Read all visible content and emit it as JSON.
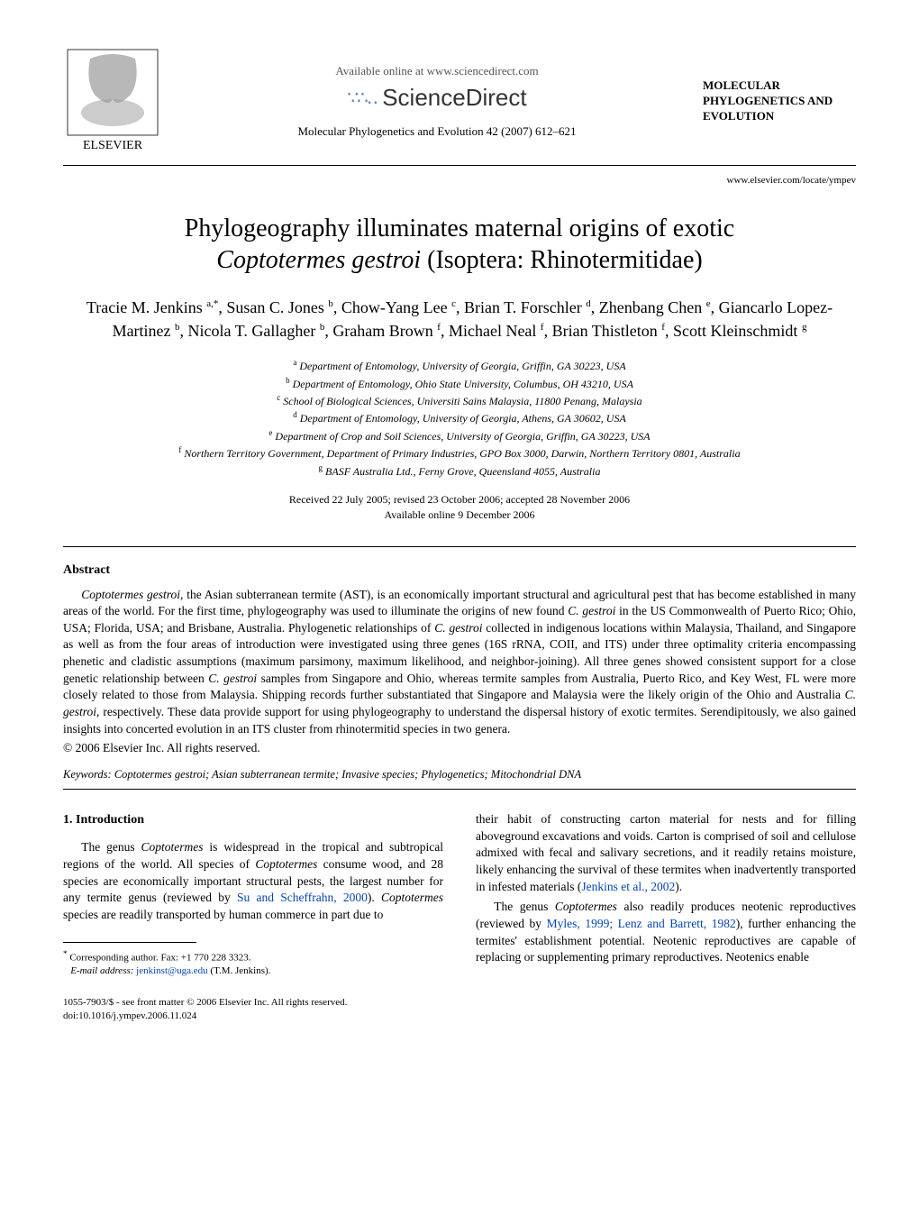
{
  "header": {
    "available_online": "Available online at www.sciencedirect.com",
    "sciencedirect_label": "ScienceDirect",
    "journal_citation": "Molecular Phylogenetics and Evolution 42 (2007) 612–621",
    "journal_title_lines": "MOLECULAR PHYLOGENETICS AND EVOLUTION",
    "site_link": "www.elsevier.com/locate/ympev",
    "elsevier_label": "ELSEVIER"
  },
  "title": {
    "line1": "Phylogeography illuminates maternal origins of exotic",
    "line2_pre": "",
    "line2_italic": "Coptotermes gestroi",
    "line2_post": " (Isoptera: Rhinotermitidae)"
  },
  "authors_html": "Tracie M. Jenkins <sup>a,*</sup>, Susan C. Jones <sup>b</sup>, Chow-Yang Lee <sup>c</sup>, Brian T. Forschler <sup>d</sup>, Zhenbang Chen <sup>e</sup>, Giancarlo Lopez-Martinez <sup>b</sup>, Nicola T. Gallagher <sup>b</sup>, Graham Brown <sup>f</sup>, Michael Neal <sup>f</sup>, Brian Thistleton <sup>f</sup>, Scott Kleinschmidt <sup>g</sup>",
  "affiliations": {
    "a": "Department of Entomology, University of Georgia, Griffin, GA 30223, USA",
    "b": "Department of Entomology, Ohio State University, Columbus, OH 43210, USA",
    "c": "School of Biological Sciences, Universiti Sains Malaysia, 11800 Penang, Malaysia",
    "d": "Department of Entomology, University of Georgia, Athens, GA 30602, USA",
    "e": "Department of Crop and Soil Sciences, University of Georgia, Griffin, GA 30223, USA",
    "f": "Northern Territory Government, Department of Primary Industries, GPO Box 3000, Darwin, Northern Territory 0801, Australia",
    "g": "BASF Australia Ltd., Ferny Grove, Queensland 4055, Australia"
  },
  "dates": {
    "received": "Received 22 July 2005; revised 23 October 2006; accepted 28 November 2006",
    "available": "Available online 9 December 2006"
  },
  "abstract": {
    "heading": "Abstract",
    "text": "Coptotermes gestroi, the Asian subterranean termite (AST), is an economically important structural and agricultural pest that has become established in many areas of the world. For the first time, phylogeography was used to illuminate the origins of new found C. gestroi in the US Commonwealth of Puerto Rico; Ohio, USA; Florida, USA; and Brisbane, Australia. Phylogenetic relationships of C. gestroi collected in indigenous locations within Malaysia, Thailand, and Singapore as well as from the four areas of introduction were investigated using three genes (16S rRNA, COII, and ITS) under three optimality criteria encompassing phenetic and cladistic assumptions (maximum parsimony, maximum likelihood, and neighbor-joining). All three genes showed consistent support for a close genetic relationship between C. gestroi samples from Singapore and Ohio, whereas termite samples from Australia, Puerto Rico, and Key West, FL were more closely related to those from Malaysia. Shipping records further substantiated that Singapore and Malaysia were the likely origin of the Ohio and Australia C. gestroi, respectively. These data provide support for using phylogeography to understand the dispersal history of exotic termites. Serendipitously, we also gained insights into concerted evolution in an ITS cluster from rhinotermitid species in two genera.",
    "copyright": "© 2006 Elsevier Inc. All rights reserved."
  },
  "keywords": {
    "label": "Keywords:",
    "text": " Coptotermes gestroi; Asian subterranean termite; Invasive species; Phylogenetics; Mitochondrial DNA"
  },
  "intro": {
    "heading": "1. Introduction",
    "left_p1_a": "The genus ",
    "left_p1_ital1": "Coptotermes",
    "left_p1_b": " is widespread in the tropical and subtropical regions of the world. All species of ",
    "left_p1_ital2": "Coptotermes",
    "left_p1_c": " consume wood, and 28 species are economically important structural pests, the largest number for any termite genus (reviewed by ",
    "left_p1_cite": "Su and Scheffrahn, 2000",
    "left_p1_d": "). ",
    "left_p1_ital3": "Coptotermes",
    "left_p1_e": " species are readily transported by human commerce in part due to",
    "right_p1_a": "their habit of constructing carton material for nests and for filling aboveground excavations and voids. Carton is comprised of soil and cellulose admixed with fecal and salivary secretions, and it readily retains moisture, likely enhancing the survival of these termites when inadvertently transported in infested materials (",
    "right_p1_cite": "Jenkins et al., 2002",
    "right_p1_b": ").",
    "right_p2_a": "The genus ",
    "right_p2_ital": "Coptotermes",
    "right_p2_b": " also readily produces neotenic reproductives (reviewed by ",
    "right_p2_cite": "Myles, 1999; Lenz and Barrett, 1982",
    "right_p2_c": "), further enhancing the termites' establishment potential. Neotenic reproductives are capable of replacing or supplementing primary reproductives. Neotenics enable"
  },
  "footnote": {
    "corr": "Corresponding author. Fax: +1 770 228 3323.",
    "email_label": "E-mail address:",
    "email": "jenkinst@uga.edu",
    "email_who": " (T.M. Jenkins)."
  },
  "bottom": {
    "front_matter": "1055-7903/$ - see front matter © 2006 Elsevier Inc. All rights reserved.",
    "doi": "doi:10.1016/j.ympev.2006.11.024"
  },
  "colors": {
    "link_color": "#0645ad",
    "text_color": "#000000",
    "bg_color": "#ffffff",
    "sd_logo_color": "#5a7fb0"
  }
}
